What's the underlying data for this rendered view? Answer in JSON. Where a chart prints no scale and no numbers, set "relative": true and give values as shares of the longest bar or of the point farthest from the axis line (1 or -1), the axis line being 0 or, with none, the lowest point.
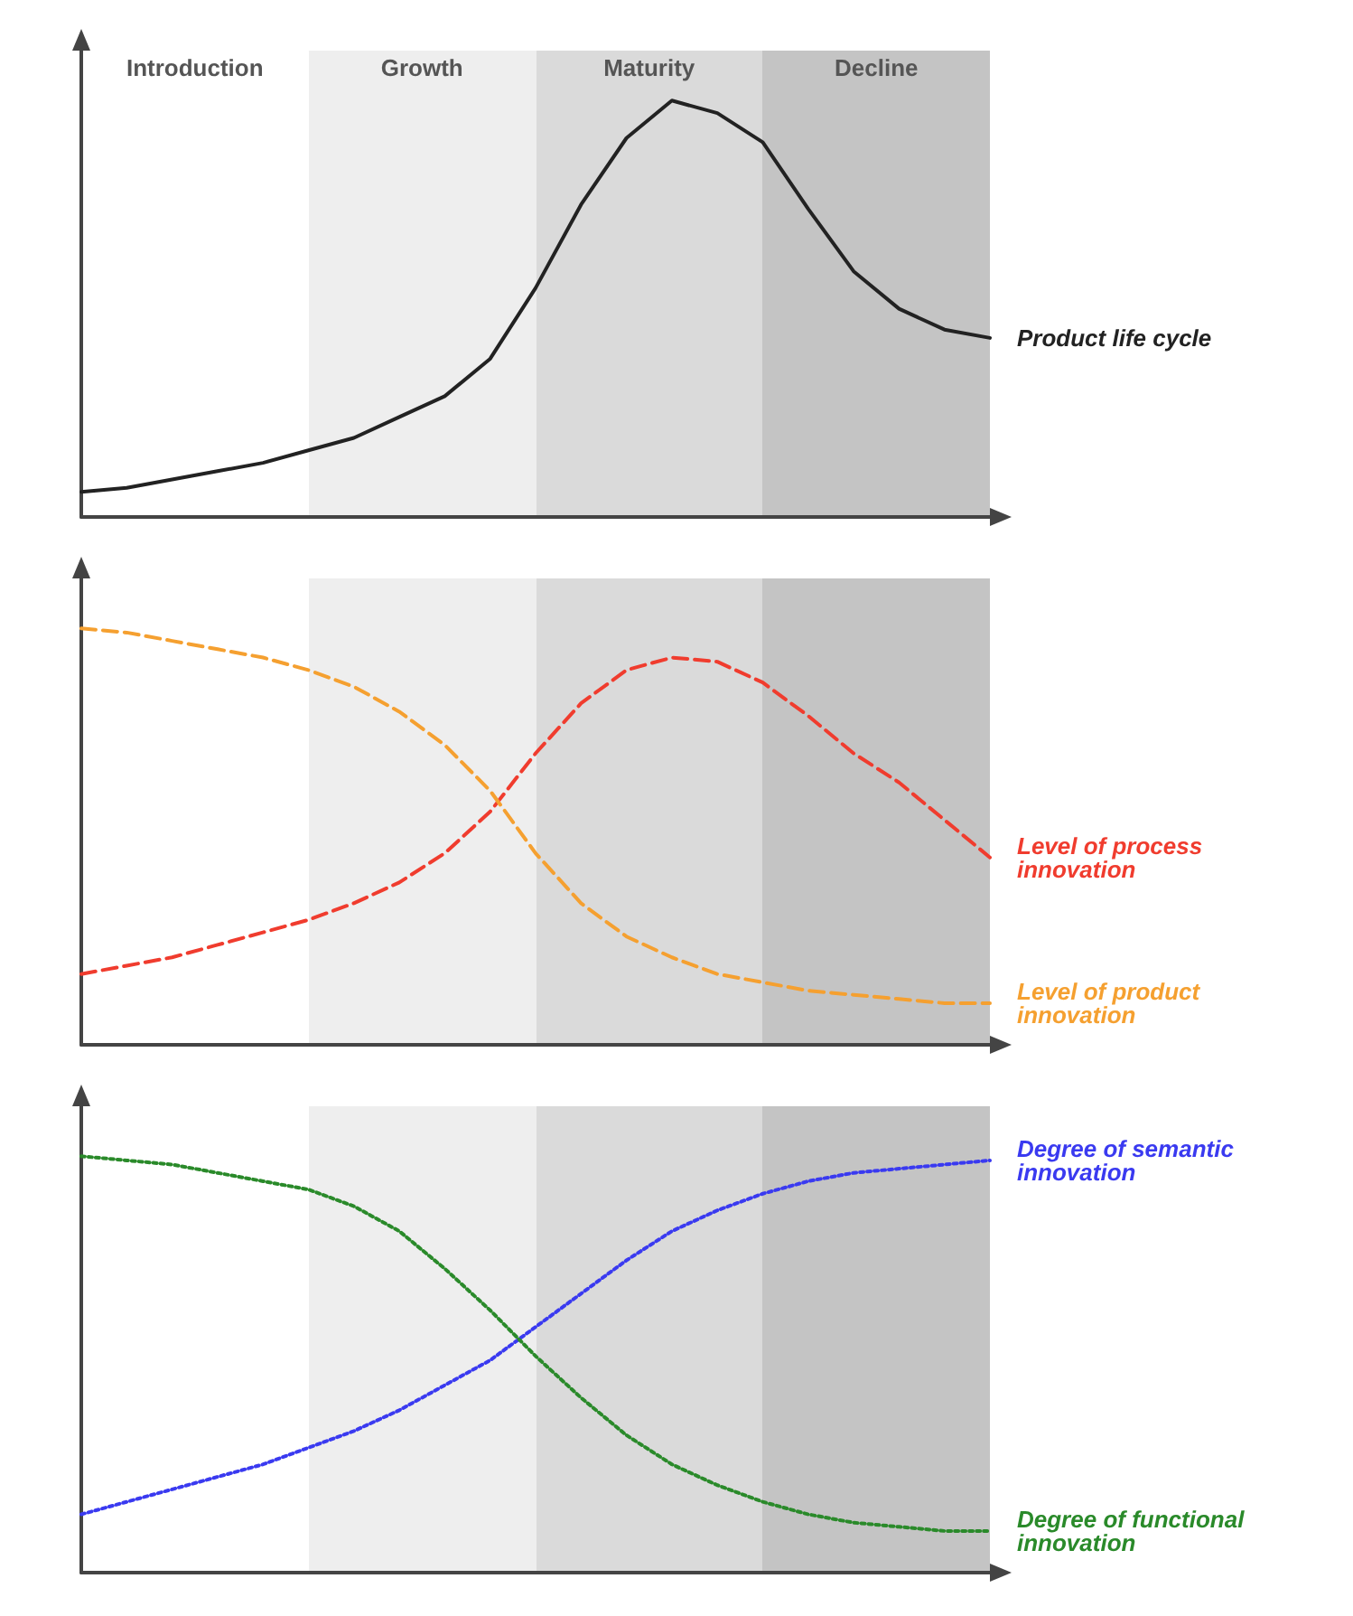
{
  "chart_data": [
    {
      "type": "line",
      "relative": true,
      "annotations": [
        "Introduction",
        "Growth",
        "Maturity",
        "Decline"
      ],
      "categories": [
        null,
        null,
        null,
        null,
        null,
        null,
        null,
        null,
        null,
        null,
        null,
        null,
        null,
        null,
        null,
        null,
        null,
        null,
        null,
        null,
        null
      ],
      "series": [
        {
          "name": "Product life cycle",
          "color": "#222222",
          "values": [
            0.06,
            0.07,
            0.09,
            0.11,
            0.13,
            0.16,
            0.19,
            0.24,
            0.29,
            0.38,
            0.55,
            0.75,
            0.91,
            1,
            0.97,
            0.9,
            0.74,
            0.59,
            0.5,
            0.45,
            0.43
          ]
        }
      ],
      "line_style": "solid"
    },
    {
      "type": "line",
      "relative": true,
      "categories": [
        null,
        null,
        null,
        null,
        null,
        null,
        null,
        null,
        null,
        null,
        null,
        null,
        null,
        null,
        null,
        null,
        null,
        null,
        null,
        null,
        null
      ],
      "series": [
        {
          "name": "Level of process innovation",
          "color": "#f03c2e",
          "values": [
            0.17,
            0.19,
            0.21,
            0.24,
            0.27,
            0.3,
            0.34,
            0.39,
            0.46,
            0.56,
            0.7,
            0.82,
            0.9,
            0.93,
            0.92,
            0.87,
            0.79,
            0.7,
            0.63,
            0.54,
            0.45
          ]
        },
        {
          "name": "Level of product innovation",
          "color": "#f5a030",
          "values": [
            1,
            0.99,
            0.97,
            0.95,
            0.93,
            0.9,
            0.86,
            0.8,
            0.72,
            0.61,
            0.46,
            0.34,
            0.26,
            0.21,
            0.17,
            0.15,
            0.13,
            0.12,
            0.11,
            0.1,
            0.1
          ]
        }
      ],
      "line_style": "dashed"
    },
    {
      "type": "line",
      "relative": true,
      "categories": [
        null,
        null,
        null,
        null,
        null,
        null,
        null,
        null,
        null,
        null,
        null,
        null,
        null,
        null,
        null,
        null,
        null,
        null,
        null,
        null,
        null
      ],
      "series": [
        {
          "name": "Degree of semantic innovation",
          "color": "#3a3af0",
          "values": [
            0.14,
            0.17,
            0.2,
            0.23,
            0.26,
            0.3,
            0.34,
            0.39,
            0.45,
            0.51,
            0.59,
            0.67,
            0.75,
            0.82,
            0.87,
            0.91,
            0.94,
            0.96,
            0.97,
            0.98,
            0.99
          ]
        },
        {
          "name": "Degree of functional innovation",
          "color": "#2a8a2a",
          "values": [
            1,
            0.99,
            0.98,
            0.96,
            0.94,
            0.92,
            0.88,
            0.82,
            0.73,
            0.63,
            0.52,
            0.42,
            0.33,
            0.26,
            0.21,
            0.17,
            0.14,
            0.12,
            0.11,
            0.1,
            0.1
          ]
        }
      ],
      "line_style": "dotted"
    }
  ]
}
